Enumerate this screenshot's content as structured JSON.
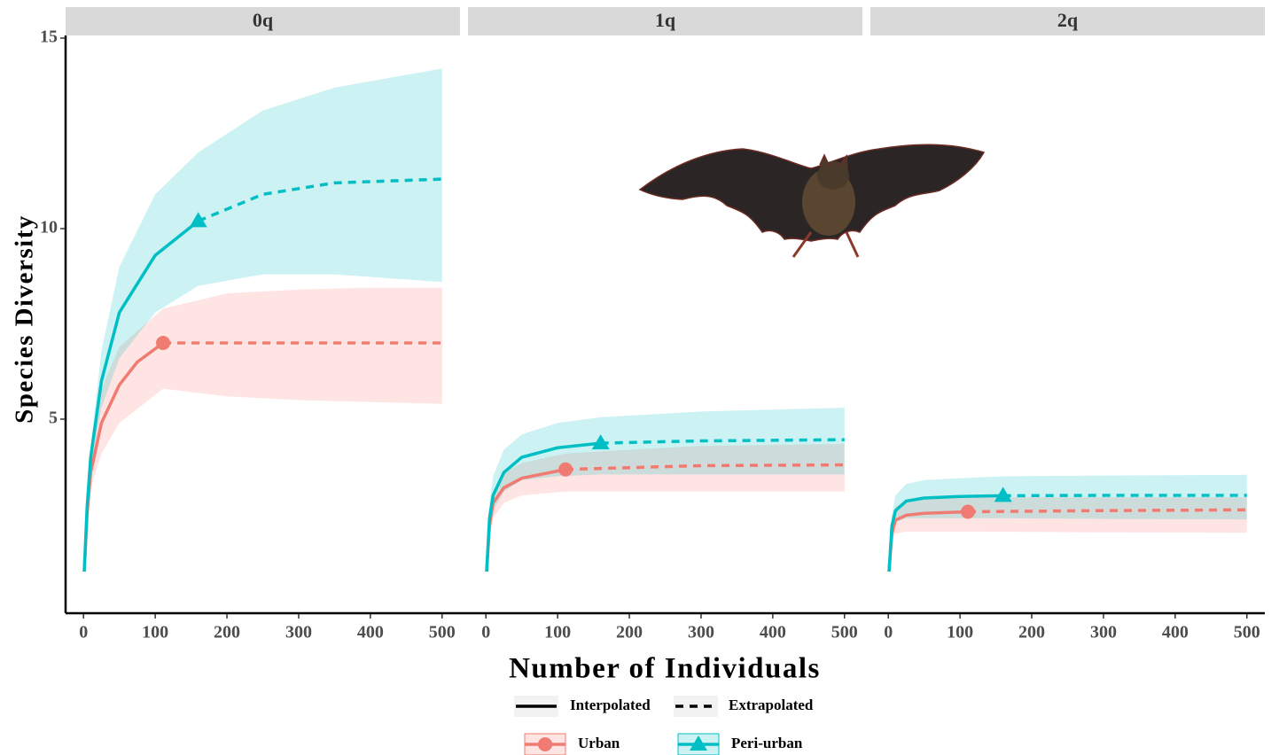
{
  "chart_data": {
    "type": "line",
    "x_label": "Number of Individuals",
    "y_label": "Species Diversity",
    "linetype_labels": [
      "Interpolated",
      "Extrapolated"
    ],
    "series": [
      {
        "name": "Urban",
        "color": "#f07b72",
        "band_color": "#f8766d",
        "marker": "circle"
      },
      {
        "name": "Peri-urban",
        "color": "#00bfc4",
        "band_color": "#00bfc4",
        "marker": "triangle"
      }
    ],
    "xlim": [
      -25,
      525
    ],
    "xticks": [
      0,
      100,
      200,
      300,
      400,
      500
    ],
    "ylim": [
      0,
      15
    ],
    "yticks": [
      5,
      10,
      15
    ],
    "facets": [
      {
        "title": "0q",
        "series": [
          {
            "interpolated": {
              "x": [
                1,
                5,
                10,
                25,
                50,
                75,
                111
              ],
              "values": [
                1,
                2.5,
                3.6,
                4.9,
                5.9,
                6.5,
                7.0
              ]
            },
            "extrapolated": {
              "x": [
                111,
                200,
                300,
                400,
                500
              ],
              "values": [
                7.0,
                7.0,
                7.0,
                7.0,
                7.0
              ]
            },
            "ci": {
              "x": [
                1,
                5,
                10,
                25,
                50,
                111,
                200,
                300,
                400,
                500
              ],
              "lower": [
                1,
                2.2,
                3.2,
                4.1,
                4.9,
                5.8,
                5.6,
                5.5,
                5.45,
                5.4
              ],
              "upper": [
                1,
                2.8,
                4.0,
                5.8,
                6.9,
                7.9,
                8.3,
                8.4,
                8.45,
                8.45
              ]
            }
          },
          {
            "interpolated": {
              "x": [
                1,
                5,
                10,
                25,
                50,
                100,
                160
              ],
              "values": [
                1,
                2.7,
                4.0,
                6.0,
                7.8,
                9.3,
                10.2
              ]
            },
            "extrapolated": {
              "x": [
                160,
                250,
                350,
                500
              ],
              "values": [
                10.2,
                10.9,
                11.2,
                11.3
              ]
            },
            "ci": {
              "x": [
                1,
                5,
                10,
                25,
                50,
                100,
                160,
                250,
                350,
                500
              ],
              "lower": [
                1,
                2.5,
                3.7,
                5.3,
                6.6,
                7.8,
                8.5,
                8.8,
                8.8,
                8.6
              ],
              "upper": [
                1,
                2.9,
                4.3,
                6.8,
                9.0,
                10.9,
                12.0,
                13.1,
                13.7,
                14.2
              ]
            }
          }
        ]
      },
      {
        "title": "1q",
        "series": [
          {
            "interpolated": {
              "x": [
                1,
                5,
                10,
                25,
                50,
                111
              ],
              "values": [
                1,
                2.2,
                2.8,
                3.2,
                3.45,
                3.68
              ]
            },
            "extrapolated": {
              "x": [
                111,
                300,
                500
              ],
              "values": [
                3.68,
                3.78,
                3.8
              ]
            },
            "ci": {
              "x": [
                1,
                5,
                10,
                25,
                50,
                111,
                300,
                500
              ],
              "lower": [
                1,
                1.9,
                2.4,
                2.8,
                3.0,
                3.1,
                3.1,
                3.1
              ],
              "upper": [
                1,
                2.5,
                3.1,
                3.6,
                3.85,
                4.1,
                4.3,
                4.35
              ]
            }
          },
          {
            "interpolated": {
              "x": [
                1,
                5,
                10,
                25,
                50,
                100,
                160
              ],
              "values": [
                1,
                2.4,
                3.0,
                3.6,
                4.0,
                4.25,
                4.37
              ]
            },
            "extrapolated": {
              "x": [
                160,
                300,
                500
              ],
              "values": [
                4.37,
                4.43,
                4.46
              ]
            },
            "ci": {
              "x": [
                1,
                5,
                10,
                25,
                50,
                100,
                160,
                300,
                500
              ],
              "lower": [
                1,
                2.1,
                2.6,
                3.1,
                3.4,
                3.5,
                3.55,
                3.55,
                3.55
              ],
              "upper": [
                1,
                2.8,
                3.5,
                4.2,
                4.6,
                4.9,
                5.05,
                5.2,
                5.3
              ]
            }
          }
        ]
      },
      {
        "title": "2q",
        "series": [
          {
            "interpolated": {
              "x": [
                1,
                5,
                10,
                25,
                50,
                111
              ],
              "values": [
                1,
                2.0,
                2.35,
                2.48,
                2.53,
                2.57
              ]
            },
            "extrapolated": {
              "x": [
                111,
                300,
                500
              ],
              "values": [
                2.57,
                2.6,
                2.62
              ]
            },
            "ci": {
              "x": [
                1,
                5,
                10,
                25,
                50,
                111,
                300,
                500
              ],
              "lower": [
                1,
                1.8,
                2.0,
                2.05,
                2.05,
                2.05,
                2.03,
                2.02
              ],
              "upper": [
                1,
                2.25,
                2.7,
                2.85,
                2.9,
                2.95,
                2.95,
                2.95
              ]
            }
          },
          {
            "interpolated": {
              "x": [
                1,
                5,
                10,
                25,
                50,
                100,
                160
              ],
              "values": [
                1,
                2.2,
                2.6,
                2.85,
                2.93,
                2.97,
                2.99
              ]
            },
            "extrapolated": {
              "x": [
                160,
                300,
                500
              ],
              "values": [
                2.99,
                3.0,
                3.0
              ]
            },
            "ci": {
              "x": [
                1,
                5,
                10,
                25,
                50,
                100,
                160,
                300,
                500
              ],
              "lower": [
                1,
                2.0,
                2.3,
                2.4,
                2.4,
                2.4,
                2.4,
                2.38,
                2.37
              ],
              "upper": [
                1,
                2.5,
                3.0,
                3.3,
                3.4,
                3.45,
                3.5,
                3.52,
                3.54
              ]
            }
          }
        ]
      }
    ]
  }
}
